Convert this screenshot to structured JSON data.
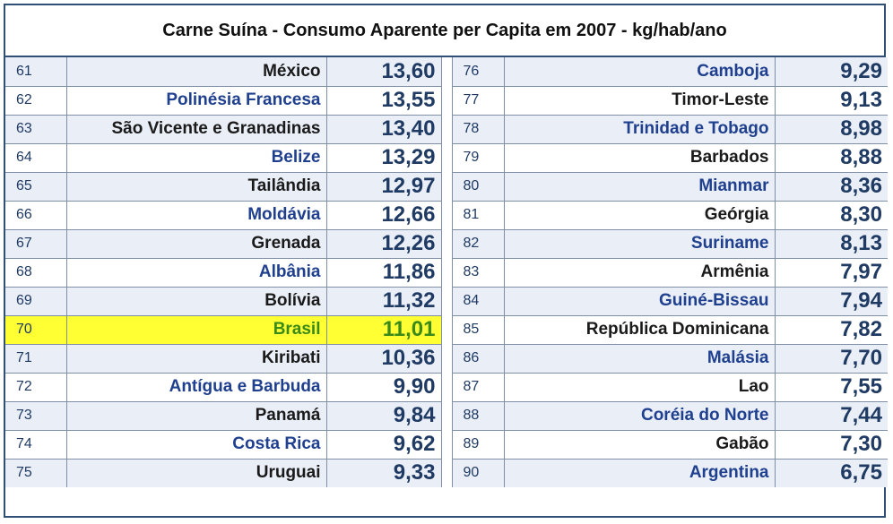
{
  "title": "Carne Suína - Consumo Aparente per Capita em 2007 - kg/hab/ano",
  "rows": [
    {
      "l_rank": "61",
      "l_name": "México",
      "l_val": "13,60",
      "l_color": "dark",
      "r_rank": "76",
      "r_name": "Camboja",
      "r_val": "9,29",
      "r_color": "blue"
    },
    {
      "l_rank": "62",
      "l_name": "Polinésia Francesa",
      "l_val": "13,55",
      "l_color": "blue",
      "r_rank": "77",
      "r_name": "Timor-Leste",
      "r_val": "9,13",
      "r_color": "dark"
    },
    {
      "l_rank": "63",
      "l_name": "São Vicente e Granadinas",
      "l_val": "13,40",
      "l_color": "dark",
      "r_rank": "78",
      "r_name": "Trinidad e Tobago",
      "r_val": "8,98",
      "r_color": "blue"
    },
    {
      "l_rank": "64",
      "l_name": "Belize",
      "l_val": "13,29",
      "l_color": "blue",
      "r_rank": "79",
      "r_name": "Barbados",
      "r_val": "8,88",
      "r_color": "dark"
    },
    {
      "l_rank": "65",
      "l_name": "Tailândia",
      "l_val": "12,97",
      "l_color": "dark",
      "r_rank": "80",
      "r_name": "Mianmar",
      "r_val": "8,36",
      "r_color": "blue"
    },
    {
      "l_rank": "66",
      "l_name": "Moldávia",
      "l_val": "12,66",
      "l_color": "blue",
      "r_rank": "81",
      "r_name": "Geórgia",
      "r_val": "8,30",
      "r_color": "dark"
    },
    {
      "l_rank": "67",
      "l_name": "Grenada",
      "l_val": "12,26",
      "l_color": "dark",
      "r_rank": "82",
      "r_name": "Suriname",
      "r_val": "8,13",
      "r_color": "blue"
    },
    {
      "l_rank": "68",
      "l_name": "Albânia",
      "l_val": "11,86",
      "l_color": "blue",
      "r_rank": "83",
      "r_name": "Armênia",
      "r_val": "7,97",
      "r_color": "dark"
    },
    {
      "l_rank": "69",
      "l_name": "Bolívia",
      "l_val": "11,32",
      "l_color": "dark",
      "r_rank": "84",
      "r_name": "Guiné-Bissau",
      "r_val": "7,94",
      "r_color": "blue"
    },
    {
      "l_rank": "70",
      "l_name": "Brasil",
      "l_val": "11,01",
      "l_color": "green",
      "highlight": true,
      "r_rank": "85",
      "r_name": "República Dominicana",
      "r_val": "7,82",
      "r_color": "dark"
    },
    {
      "l_rank": "71",
      "l_name": "Kiribati",
      "l_val": "10,36",
      "l_color": "dark",
      "r_rank": "86",
      "r_name": "Malásia",
      "r_val": "7,70",
      "r_color": "blue"
    },
    {
      "l_rank": "72",
      "l_name": "Antígua e Barbuda",
      "l_val": "9,90",
      "l_color": "blue",
      "r_rank": "87",
      "r_name": "Lao",
      "r_val": "7,55",
      "r_color": "dark"
    },
    {
      "l_rank": "73",
      "l_name": "Panamá",
      "l_val": "9,84",
      "l_color": "dark",
      "r_rank": "88",
      "r_name": "Coréia do Norte",
      "r_val": "7,44",
      "r_color": "blue"
    },
    {
      "l_rank": "74",
      "l_name": "Costa Rica",
      "l_val": "9,62",
      "l_color": "blue",
      "r_rank": "89",
      "r_name": "Gabão",
      "r_val": "7,30",
      "r_color": "dark"
    },
    {
      "l_rank": "75",
      "l_name": "Uruguai",
      "l_val": "9,33",
      "l_color": "dark",
      "r_rank": "90",
      "r_name": "Argentina",
      "r_val": "6,75",
      "r_color": "blue"
    }
  ],
  "colors": {
    "border": "#2f4f74",
    "row_shade": "#e9eef7",
    "highlight_bg": "#ffff33",
    "highlight_text": "#3a8a1a",
    "dark_text": "#1a1a1a",
    "blue_text": "#1f3f8f",
    "value_text": "#1f3a63"
  }
}
